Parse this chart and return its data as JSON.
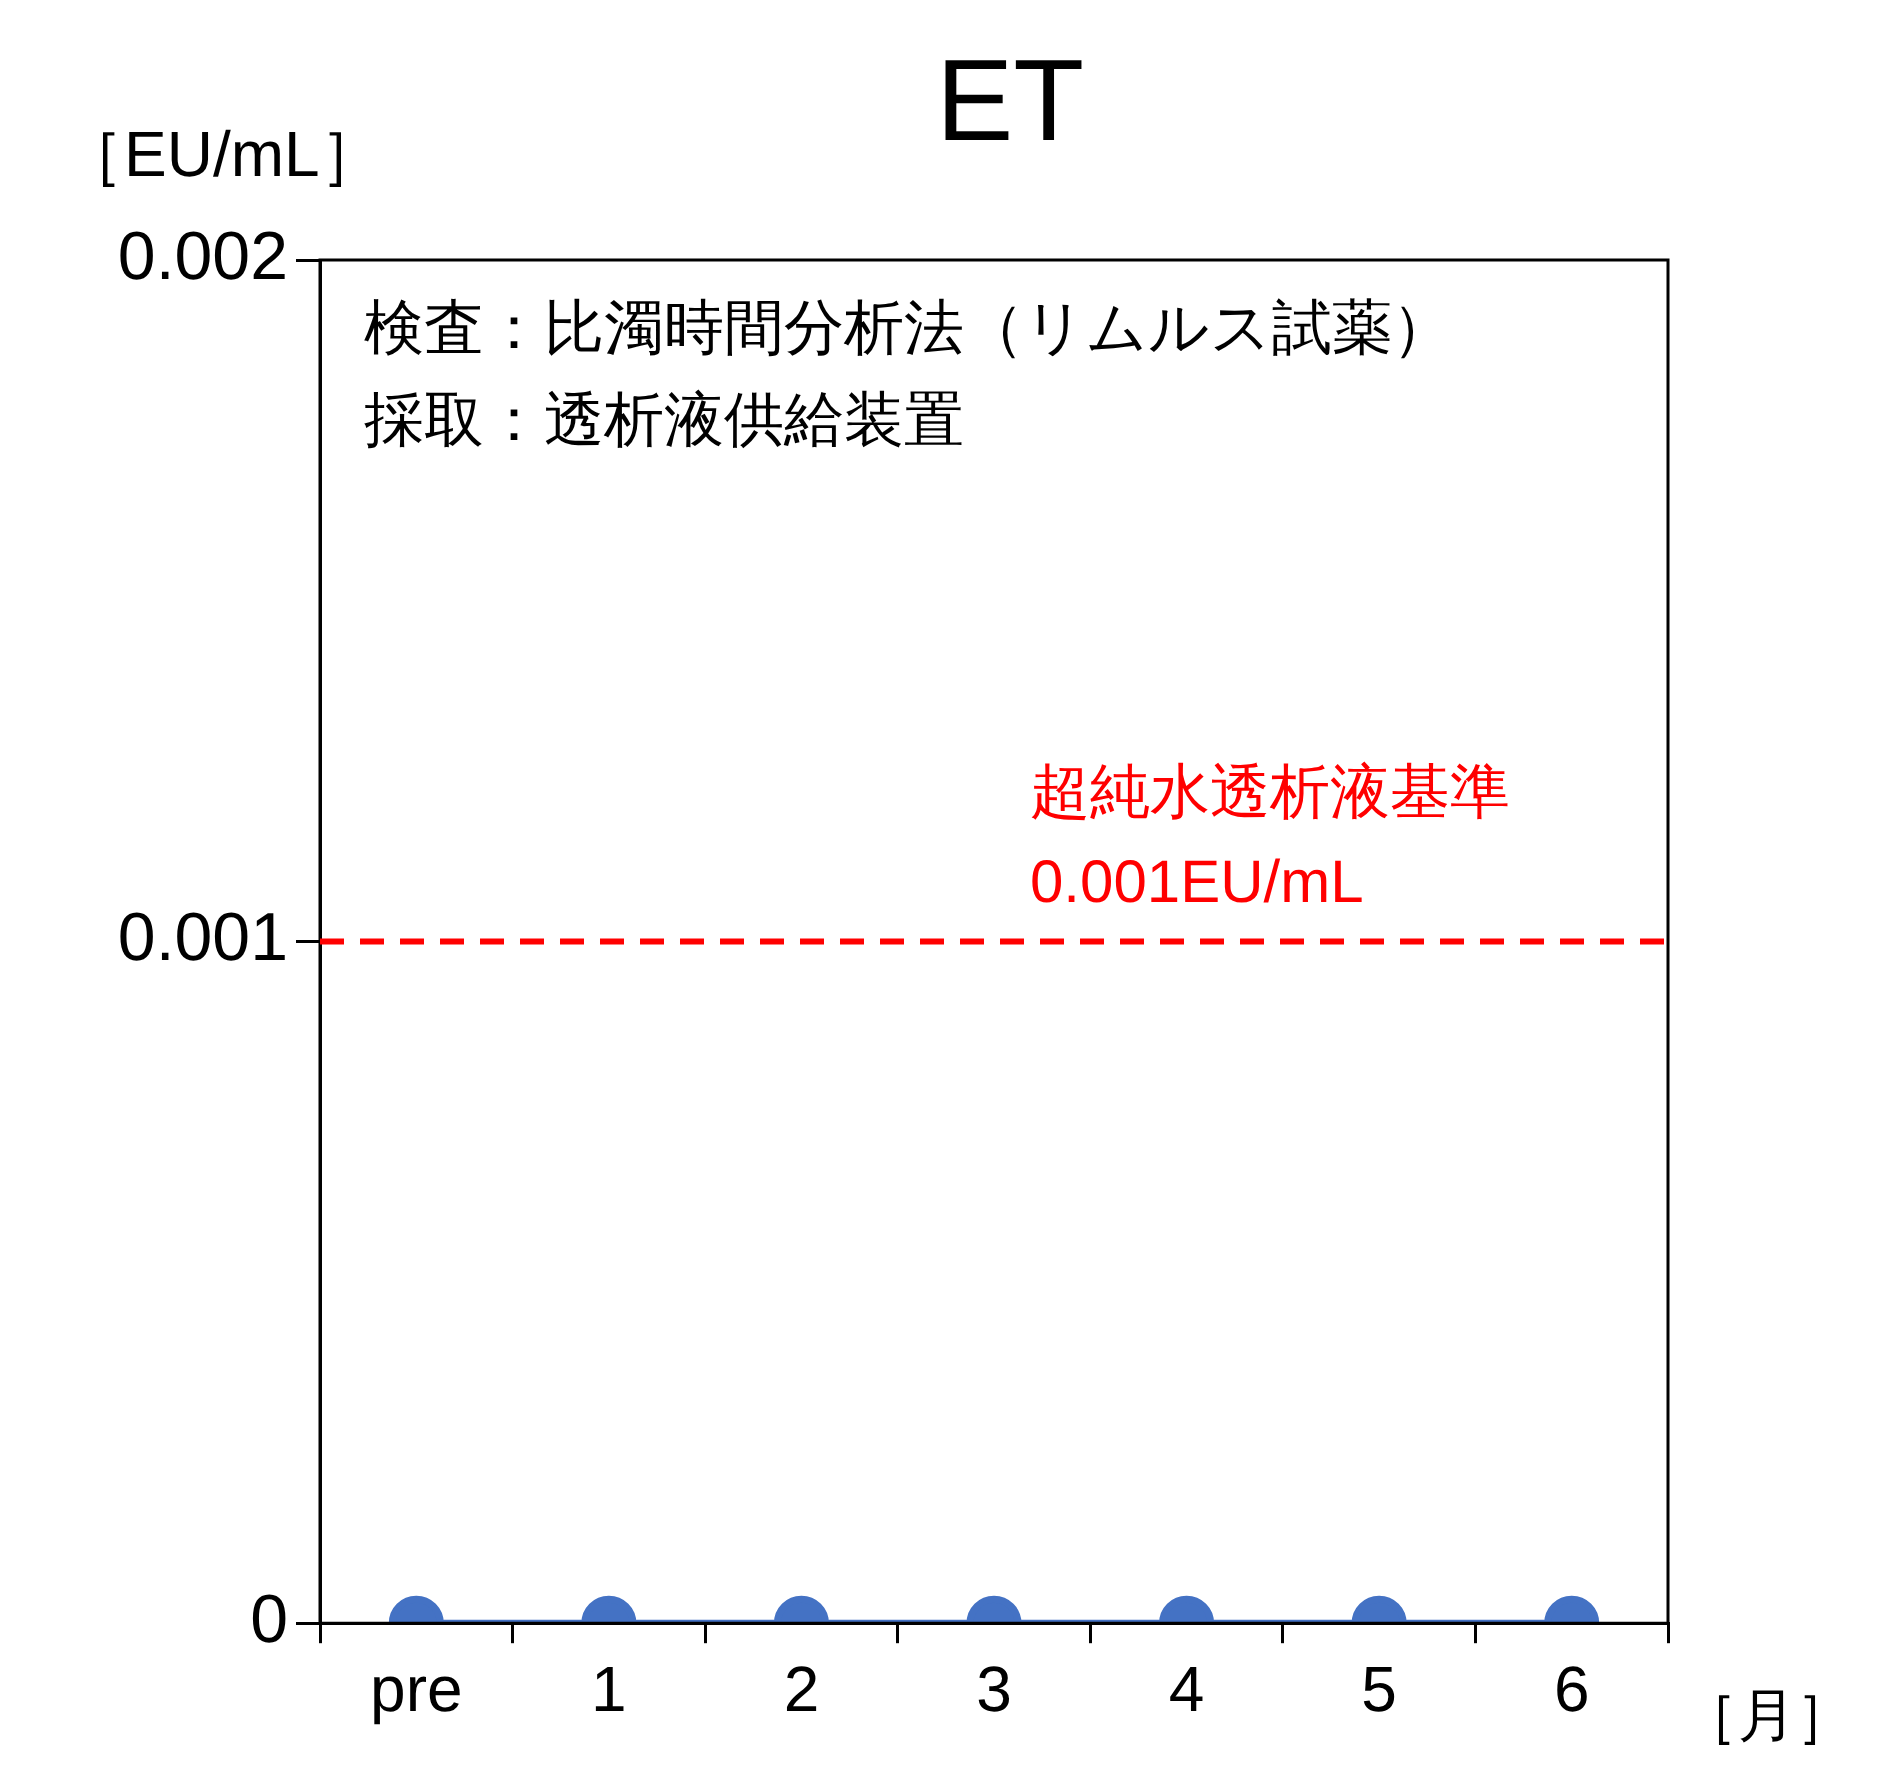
{
  "chart_data": {
    "type": "line",
    "title": "ET",
    "ylabel": "［EU/mL］",
    "xlabel": "［月］",
    "categories": [
      "pre",
      "1",
      "2",
      "3",
      "4",
      "5",
      "6"
    ],
    "series": [
      {
        "color": "#4472c4",
        "values": [
          0,
          0,
          0,
          0,
          0,
          0,
          0
        ]
      }
    ],
    "ylim": [
      0,
      0.002
    ],
    "yticks": [
      0,
      0.001,
      0.002
    ],
    "grid": false,
    "marker": "circle",
    "ref_lines": [
      {
        "axis": "y",
        "value": 0.001,
        "label": "超純水透析液基準\n0.001EU/mL",
        "color": "#ff0000",
        "line_style": "dashed"
      }
    ],
    "annotations": [
      "検査：比濁時間分析法（リムルス試薬）",
      "採取：透析液供給装置"
    ]
  }
}
